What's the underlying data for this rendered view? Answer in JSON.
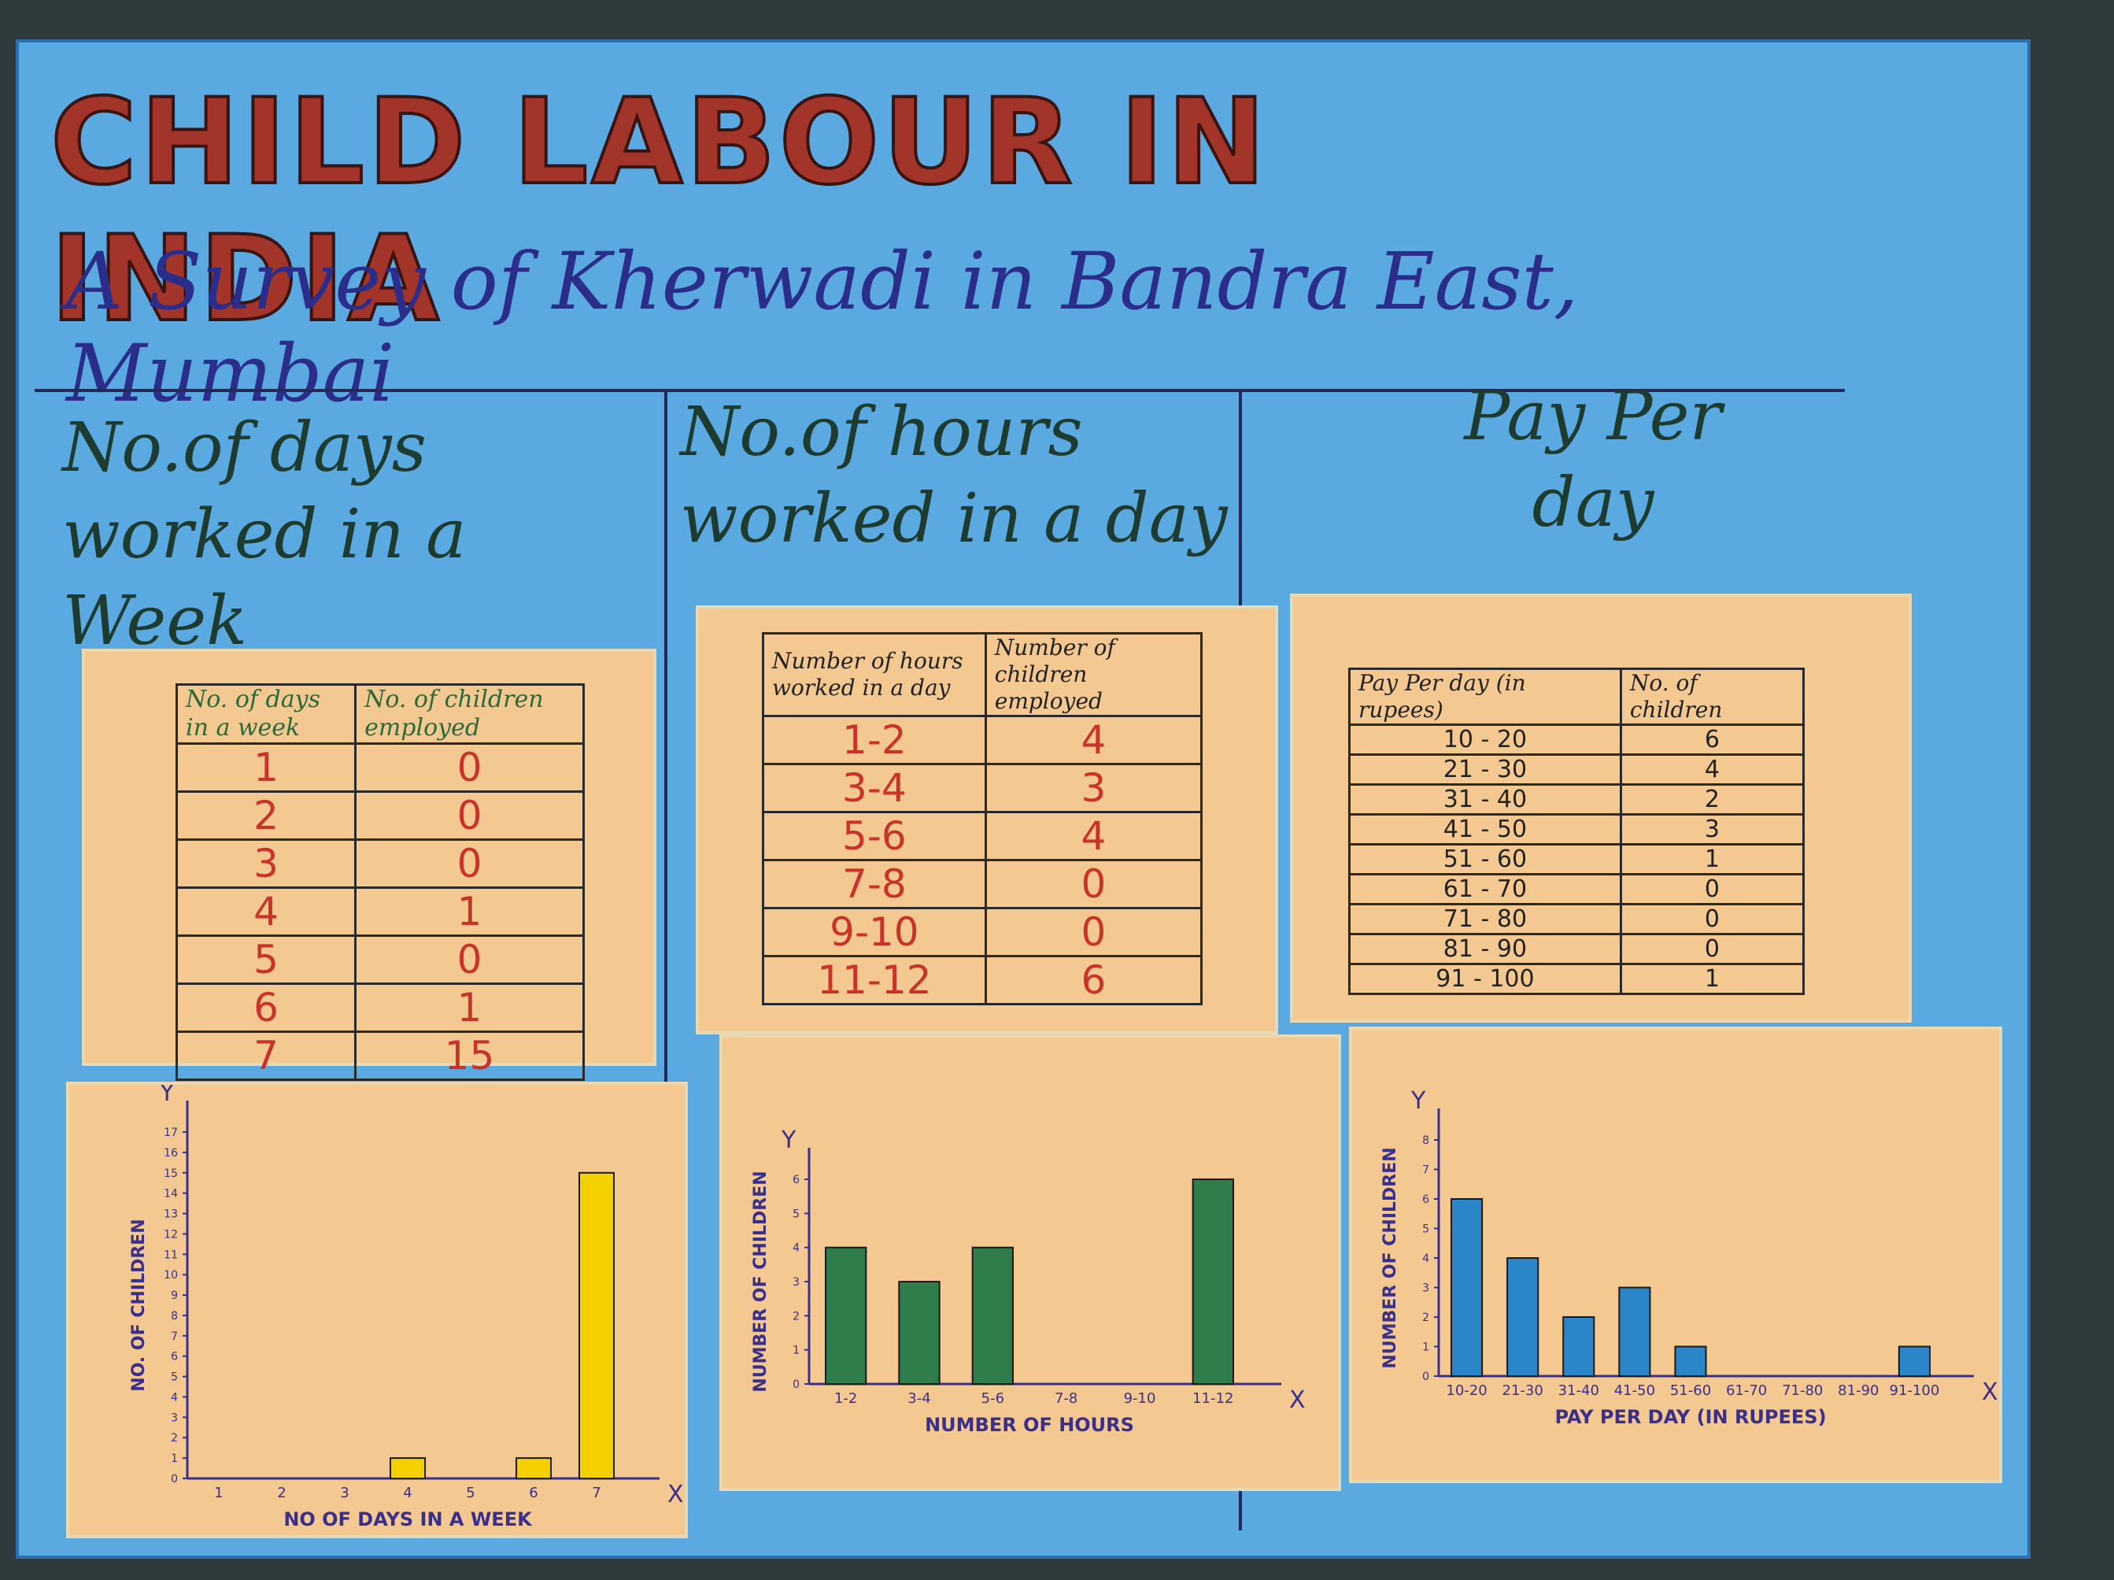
{
  "poster": {
    "title": "CHILD LABOUR IN INDIA",
    "subtitle": "A Survey of Kherwadi in Bandra East, Mumbai"
  },
  "sections": [
    {
      "heading_line1": "No.of days",
      "heading_line2": "worked in a Week",
      "table": {
        "headers": [
          "No. of days in a week",
          "No. of children employed"
        ],
        "rows": [
          [
            "1",
            "0"
          ],
          [
            "2",
            "0"
          ],
          [
            "3",
            "0"
          ],
          [
            "4",
            "1"
          ],
          [
            "5",
            "0"
          ],
          [
            "6",
            "1"
          ],
          [
            "7",
            "15"
          ]
        ]
      }
    },
    {
      "heading_line1": "No.of hours",
      "heading_line2": "worked in a day",
      "table": {
        "headers": [
          "Number of hours worked in a day",
          "Number of children employed"
        ],
        "rows": [
          [
            "1-2",
            "4"
          ],
          [
            "3-4",
            "3"
          ],
          [
            "5-6",
            "4"
          ],
          [
            "7-8",
            "0"
          ],
          [
            "9-10",
            "0"
          ],
          [
            "11-12",
            "6"
          ]
        ]
      }
    },
    {
      "heading_line1": "Pay Per",
      "heading_line2": "day",
      "table": {
        "headers": [
          "Pay Per day (in rupees)",
          "No. of children"
        ],
        "rows": [
          [
            "10 - 20",
            "6"
          ],
          [
            "21 - 30",
            "4"
          ],
          [
            "31 - 40",
            "2"
          ],
          [
            "41 - 50",
            "3"
          ],
          [
            "51 - 60",
            "1"
          ],
          [
            "61 - 70",
            "0"
          ],
          [
            "71 - 80",
            "0"
          ],
          [
            "81 - 90",
            "0"
          ],
          [
            "91 - 100",
            "1"
          ]
        ]
      }
    }
  ],
  "chart_data": [
    {
      "type": "bar",
      "categories": [
        "1",
        "2",
        "3",
        "4",
        "5",
        "6",
        "7"
      ],
      "values": [
        0,
        0,
        0,
        1,
        0,
        1,
        15
      ],
      "xlabel": "NO OF DAYS IN A WEEK",
      "ylabel": "NO. OF CHILDREN",
      "ylim": [
        0,
        17
      ],
      "yticks": [
        "0",
        "1",
        "2",
        "3",
        "4",
        "5",
        "6",
        "7",
        "8",
        "9",
        "10",
        "11",
        "12",
        "13",
        "14",
        "15",
        "16",
        "17"
      ],
      "x_axis_letter": "X",
      "y_axis_letter": "Y",
      "bar_color": "#f5d000"
    },
    {
      "type": "bar",
      "categories": [
        "1-2",
        "3-4",
        "5-6",
        "7-8",
        "9-10",
        "11-12"
      ],
      "values": [
        4,
        3,
        4,
        0,
        0,
        6
      ],
      "xlabel": "NUMBER OF HOURS",
      "ylabel": "NUMBER OF CHILDREN",
      "ylim": [
        0,
        6
      ],
      "yticks": [
        "0",
        "1",
        "2",
        "3",
        "4",
        "5",
        "6"
      ],
      "x_axis_letter": "X",
      "y_axis_letter": "Y",
      "bar_color": "#2e7d4a"
    },
    {
      "type": "bar",
      "categories": [
        "10-20",
        "21-30",
        "31-40",
        "41-50",
        "51-60",
        "61-70",
        "71-80",
        "81-90",
        "91-100"
      ],
      "values": [
        6,
        4,
        2,
        3,
        1,
        0,
        0,
        0,
        1
      ],
      "xlabel": "PAY PER DAY (IN RUPEES)",
      "ylabel": "NUMBER OF CHILDREN",
      "ylim": [
        0,
        8
      ],
      "yticks": [
        "0",
        "1",
        "2",
        "3",
        "4",
        "5",
        "6",
        "7",
        "8"
      ],
      "x_axis_letter": "X",
      "y_axis_letter": "Y",
      "bar_color": "#2a86c8"
    }
  ]
}
